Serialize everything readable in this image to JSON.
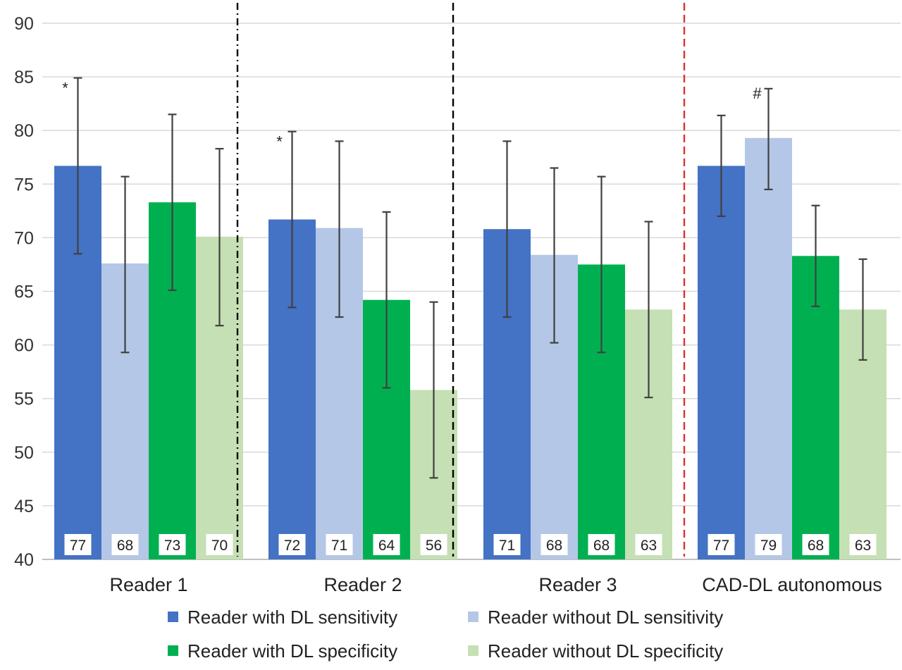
{
  "chart_data": {
    "type": "bar",
    "title": "",
    "xlabel": "",
    "ylabel": "",
    "ylim": [
      40,
      90
    ],
    "yticks": [
      40,
      45,
      50,
      55,
      60,
      65,
      70,
      75,
      80,
      85,
      90
    ],
    "grid": true,
    "legend_placement": "bottom",
    "categories": [
      "Reader 1",
      "Reader 2",
      "Reader 3",
      "CAD-DL autonomous"
    ],
    "series": [
      {
        "name": "Reader with DL sensitivity",
        "color": "#4472C4",
        "values": [
          76.7,
          71.7,
          70.8,
          76.7
        ],
        "labels": [
          "77",
          "72",
          "71",
          "77"
        ],
        "error_low": [
          68.5,
          63.5,
          62.6,
          72.0
        ],
        "error_high": [
          84.9,
          79.9,
          79.0,
          81.4
        ],
        "annotations": [
          "*",
          "*",
          "",
          ""
        ]
      },
      {
        "name": "Reader without DL sensitivity",
        "color": "#B4C7E7",
        "values": [
          67.6,
          70.9,
          68.4,
          79.3
        ],
        "labels": [
          "68",
          "71",
          "68",
          "79"
        ],
        "error_low": [
          59.3,
          62.6,
          60.2,
          74.5
        ],
        "error_high": [
          75.7,
          79.0,
          76.5,
          83.9
        ],
        "annotations": [
          "",
          "",
          "",
          "#"
        ]
      },
      {
        "name": "Reader with DL specificity",
        "color": "#00B050",
        "values": [
          73.3,
          64.2,
          67.5,
          68.3
        ],
        "labels": [
          "73",
          "64",
          "68",
          "68"
        ],
        "error_low": [
          65.1,
          56.0,
          59.3,
          63.6
        ],
        "error_high": [
          81.5,
          72.4,
          75.7,
          73.0
        ],
        "annotations": [
          "",
          "",
          "",
          ""
        ]
      },
      {
        "name": "Reader without DL specificity",
        "color": "#C5E0B4",
        "values": [
          70.1,
          55.8,
          63.3,
          63.3
        ],
        "labels": [
          "70",
          "56",
          "63",
          "63"
        ],
        "error_low": [
          61.8,
          47.6,
          55.1,
          58.6
        ],
        "error_high": [
          78.3,
          64.0,
          71.5,
          68.0
        ],
        "annotations": [
          "",
          "",
          "",
          ""
        ]
      }
    ],
    "separators": [
      {
        "after_category": "Reader 1",
        "color": "#000000"
      },
      {
        "after_category": "Reader 2",
        "color": "#000000"
      },
      {
        "after_category": "Reader 3",
        "color": "#E03030"
      }
    ]
  }
}
